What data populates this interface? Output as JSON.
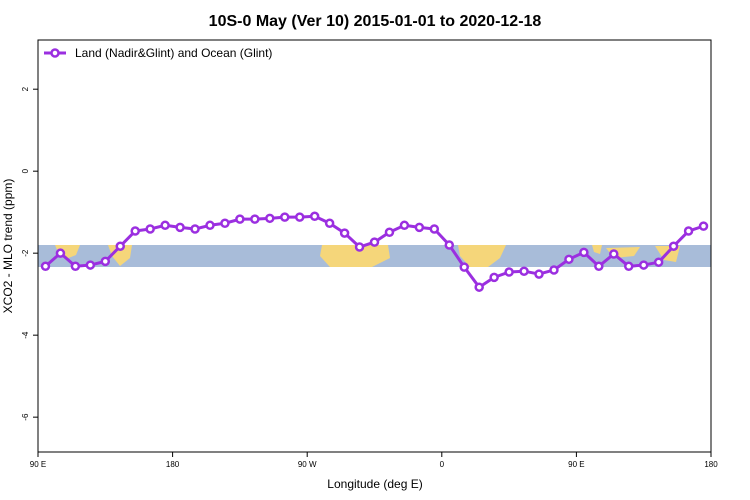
{
  "chart_data": {
    "type": "line",
    "title": "10S-0 May (Ver 10)   2015-01-01 to 2020-12-18",
    "x_label": "Longitude (deg E)",
    "y_label": "XCO2 - MLO trend (ppm)",
    "x": [
      95,
      105,
      115,
      125,
      135,
      145,
      155,
      165,
      175,
      185,
      195,
      205,
      215,
      225,
      235,
      245,
      255,
      265,
      275,
      285,
      295,
      305,
      315,
      325,
      335,
      345,
      355,
      365,
      375,
      385,
      395,
      405,
      415,
      425,
      435,
      445,
      455,
      465,
      475,
      485,
      495,
      505,
      515,
      525,
      535
    ],
    "series": [
      {
        "name": "Land (Nadir&Glint) and Ocean (Glint)",
        "color": "#9b2fe0",
        "values": [
          -2.32,
          -2.0,
          -2.32,
          -2.29,
          -2.2,
          -1.83,
          -1.46,
          -1.41,
          -1.32,
          -1.37,
          -1.41,
          -1.32,
          -1.27,
          -1.17,
          -1.17,
          -1.15,
          -1.12,
          -1.12,
          -1.1,
          -1.27,
          -1.51,
          -1.85,
          -1.73,
          -1.49,
          -1.32,
          -1.37,
          -1.41,
          -1.8,
          -2.34,
          -2.83,
          -2.59,
          -2.46,
          -2.44,
          -2.51,
          -2.41,
          -2.15,
          -1.98,
          -2.32,
          -2.02,
          -2.32,
          -2.29,
          -2.22,
          -1.83,
          -1.46,
          -1.34
        ]
      }
    ],
    "xlim": [
      90,
      540
    ],
    "xticks": [
      {
        "value": 90,
        "label": "90 E"
      },
      {
        "value": 180,
        "label": "180"
      },
      {
        "value": 270,
        "label": "90 W"
      },
      {
        "value": 360,
        "label": "0"
      },
      {
        "value": 450,
        "label": "90 E"
      },
      {
        "value": 540,
        "label": "180"
      }
    ],
    "ylim": [
      -6.85,
      3.2
    ],
    "yticks": [
      2,
      0,
      -2,
      -4,
      -6
    ],
    "legend": "top-left"
  }
}
